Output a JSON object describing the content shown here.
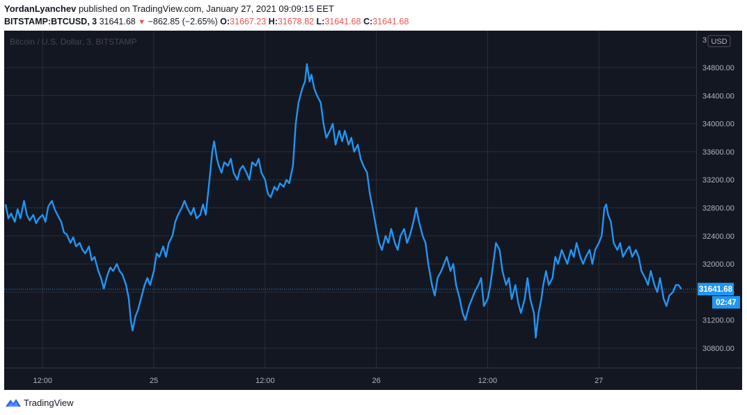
{
  "header": {
    "author": "YordanLyanchev",
    "published_text": "published on TradingView.com, January 27, 2021 09:09:15 EET",
    "symbol": "BITSTAMP:BTCUSD, 3",
    "last": "31641.68",
    "change": "−862.85 (−2.65%)",
    "o_label": "O:",
    "o": "31667.23",
    "h_label": "H:",
    "h": "31678.82",
    "l_label": "L:",
    "l": "31641.68",
    "c_label": "C:",
    "c": "31641.68"
  },
  "chart_data": {
    "type": "line",
    "watermark": "Bitcoin / U.S. Dollar, 3, BITSTAMP",
    "currency_label": "USD",
    "ylim": [
      30500,
      35400
    ],
    "yticks": [
      30800,
      31200,
      31600,
      32000,
      32400,
      32800,
      33200,
      33600,
      34000,
      34400,
      34800
    ],
    "ytick_labels": [
      "30800.00",
      "31200.00",
      "31600.00",
      "32000.00",
      "32400.00",
      "32800.00",
      "33200.00",
      "33600.00",
      "34000.00",
      "34400.00",
      "34800.00"
    ],
    "ytick_top_partial": "3",
    "xticks": [
      {
        "t": 4,
        "label": "12:00"
      },
      {
        "t": 16,
        "label": "25"
      },
      {
        "t": 28,
        "label": "12:00"
      },
      {
        "t": 40,
        "label": "26"
      },
      {
        "t": 52,
        "label": "12:00"
      },
      {
        "t": 64,
        "label": "27"
      }
    ],
    "xlim": [
      0,
      74.5
    ],
    "last_price": 31641.68,
    "last_price_label": "31641.68",
    "countdown": "02:47",
    "series": [
      {
        "color": "#2196f3",
        "points": [
          [
            0.0,
            32850
          ],
          [
            0.3,
            32650
          ],
          [
            0.6,
            32720
          ],
          [
            1.0,
            32600
          ],
          [
            1.3,
            32780
          ],
          [
            1.6,
            32650
          ],
          [
            2.0,
            32900
          ],
          [
            2.3,
            32700
          ],
          [
            2.6,
            32620
          ],
          [
            3.0,
            32700
          ],
          [
            3.3,
            32580
          ],
          [
            3.6,
            32650
          ],
          [
            4.0,
            32700
          ],
          [
            4.3,
            32600
          ],
          [
            4.6,
            32820
          ],
          [
            5.0,
            32900
          ],
          [
            5.3,
            32780
          ],
          [
            5.6,
            32700
          ],
          [
            6.0,
            32600
          ],
          [
            6.3,
            32450
          ],
          [
            6.6,
            32420
          ],
          [
            7.0,
            32300
          ],
          [
            7.3,
            32380
          ],
          [
            7.6,
            32250
          ],
          [
            8.0,
            32300
          ],
          [
            8.3,
            32200
          ],
          [
            8.6,
            32150
          ],
          [
            9.0,
            32250
          ],
          [
            9.3,
            32050
          ],
          [
            9.6,
            32100
          ],
          [
            10.0,
            31900
          ],
          [
            10.3,
            31800
          ],
          [
            10.6,
            31650
          ],
          [
            11.0,
            31850
          ],
          [
            11.3,
            31950
          ],
          [
            11.6,
            31900
          ],
          [
            12.0,
            32000
          ],
          [
            12.3,
            31900
          ],
          [
            12.6,
            31850
          ],
          [
            13.0,
            31700
          ],
          [
            13.3,
            31500
          ],
          [
            13.5,
            31200
          ],
          [
            13.7,
            31050
          ],
          [
            14.0,
            31250
          ],
          [
            14.3,
            31350
          ],
          [
            14.6,
            31500
          ],
          [
            15.0,
            31700
          ],
          [
            15.3,
            31800
          ],
          [
            15.6,
            31700
          ],
          [
            16.0,
            31900
          ],
          [
            16.3,
            32150
          ],
          [
            16.6,
            32100
          ],
          [
            17.0,
            32250
          ],
          [
            17.3,
            32100
          ],
          [
            17.6,
            32300
          ],
          [
            18.0,
            32400
          ],
          [
            18.3,
            32600
          ],
          [
            18.6,
            32700
          ],
          [
            19.0,
            32800
          ],
          [
            19.3,
            32900
          ],
          [
            19.6,
            32800
          ],
          [
            20.0,
            32700
          ],
          [
            20.3,
            32800
          ],
          [
            20.6,
            32650
          ],
          [
            21.0,
            32700
          ],
          [
            21.3,
            32850
          ],
          [
            21.6,
            32700
          ],
          [
            22.0,
            33200
          ],
          [
            22.3,
            33600
          ],
          [
            22.5,
            33750
          ],
          [
            22.8,
            33500
          ],
          [
            23.0,
            33400
          ],
          [
            23.3,
            33300
          ],
          [
            23.6,
            33450
          ],
          [
            24.0,
            33400
          ],
          [
            24.3,
            33500
          ],
          [
            24.6,
            33300
          ],
          [
            25.0,
            33200
          ],
          [
            25.3,
            33350
          ],
          [
            25.6,
            33400
          ],
          [
            26.0,
            33300
          ],
          [
            26.3,
            33200
          ],
          [
            26.6,
            33450
          ],
          [
            27.0,
            33400
          ],
          [
            27.3,
            33500
          ],
          [
            27.6,
            33300
          ],
          [
            28.0,
            33200
          ],
          [
            28.3,
            33000
          ],
          [
            28.6,
            32950
          ],
          [
            29.0,
            33100
          ],
          [
            29.3,
            33050
          ],
          [
            29.6,
            33150
          ],
          [
            30.0,
            33100
          ],
          [
            30.3,
            33200
          ],
          [
            30.6,
            33150
          ],
          [
            31.0,
            33400
          ],
          [
            31.3,
            34000
          ],
          [
            31.6,
            34300
          ],
          [
            32.0,
            34500
          ],
          [
            32.3,
            34600
          ],
          [
            32.5,
            34850
          ],
          [
            32.8,
            34600
          ],
          [
            33.0,
            34700
          ],
          [
            33.3,
            34500
          ],
          [
            33.6,
            34400
          ],
          [
            34.0,
            34300
          ],
          [
            34.3,
            34000
          ],
          [
            34.6,
            33800
          ],
          [
            35.0,
            33900
          ],
          [
            35.3,
            34000
          ],
          [
            35.6,
            33700
          ],
          [
            36.0,
            33900
          ],
          [
            36.3,
            33750
          ],
          [
            36.6,
            33900
          ],
          [
            37.0,
            33700
          ],
          [
            37.3,
            33800
          ],
          [
            37.6,
            33600
          ],
          [
            38.0,
            33700
          ],
          [
            38.3,
            33500
          ],
          [
            38.6,
            33400
          ],
          [
            39.0,
            33300
          ],
          [
            39.3,
            33000
          ],
          [
            39.6,
            32800
          ],
          [
            40.0,
            32500
          ],
          [
            40.3,
            32300
          ],
          [
            40.6,
            32200
          ],
          [
            41.0,
            32400
          ],
          [
            41.3,
            32300
          ],
          [
            41.6,
            32500
          ],
          [
            42.0,
            32300
          ],
          [
            42.3,
            32200
          ],
          [
            42.6,
            32400
          ],
          [
            43.0,
            32500
          ],
          [
            43.3,
            32300
          ],
          [
            43.6,
            32400
          ],
          [
            44.0,
            32600
          ],
          [
            44.3,
            32800
          ],
          [
            44.6,
            32600
          ],
          [
            45.0,
            32400
          ],
          [
            45.3,
            32300
          ],
          [
            45.6,
            32000
          ],
          [
            46.0,
            31700
          ],
          [
            46.3,
            31550
          ],
          [
            46.6,
            31800
          ],
          [
            47.0,
            31900
          ],
          [
            47.3,
            32000
          ],
          [
            47.6,
            32100
          ],
          [
            48.0,
            31900
          ],
          [
            48.3,
            32000
          ],
          [
            48.6,
            31700
          ],
          [
            49.0,
            31500
          ],
          [
            49.3,
            31300
          ],
          [
            49.6,
            31200
          ],
          [
            50.0,
            31400
          ],
          [
            50.3,
            31500
          ],
          [
            50.6,
            31600
          ],
          [
            51.0,
            31700
          ],
          [
            51.3,
            31800
          ],
          [
            51.6,
            31400
          ],
          [
            52.0,
            31500
          ],
          [
            52.3,
            31700
          ],
          [
            52.6,
            32000
          ],
          [
            52.9,
            32300
          ],
          [
            53.3,
            32200
          ],
          [
            53.6,
            31900
          ],
          [
            54.0,
            31700
          ],
          [
            54.3,
            31800
          ],
          [
            54.6,
            31500
          ],
          [
            55.0,
            31700
          ],
          [
            55.3,
            31450
          ],
          [
            55.6,
            31300
          ],
          [
            56.0,
            31500
          ],
          [
            56.3,
            31800
          ],
          [
            56.6,
            31500
          ],
          [
            57.0,
            31300
          ],
          [
            57.2,
            30950
          ],
          [
            57.5,
            31300
          ],
          [
            57.8,
            31500
          ],
          [
            58.0,
            31700
          ],
          [
            58.3,
            31900
          ],
          [
            58.6,
            31700
          ],
          [
            59.0,
            31800
          ],
          [
            59.3,
            32100
          ],
          [
            59.6,
            32000
          ],
          [
            60.0,
            32200
          ],
          [
            60.3,
            32100
          ],
          [
            60.6,
            32000
          ],
          [
            61.0,
            32200
          ],
          [
            61.3,
            32100
          ],
          [
            61.6,
            32300
          ],
          [
            62.0,
            32100
          ],
          [
            62.3,
            32000
          ],
          [
            62.6,
            32100
          ],
          [
            63.0,
            32200
          ],
          [
            63.3,
            32000
          ],
          [
            63.6,
            32200
          ],
          [
            64.0,
            32300
          ],
          [
            64.3,
            32400
          ],
          [
            64.6,
            32800
          ],
          [
            64.8,
            32850
          ],
          [
            65.0,
            32700
          ],
          [
            65.3,
            32600
          ],
          [
            65.6,
            32300
          ],
          [
            66.0,
            32200
          ],
          [
            66.3,
            32300
          ],
          [
            66.6,
            32100
          ],
          [
            67.0,
            32200
          ],
          [
            67.3,
            32250
          ],
          [
            67.6,
            32100
          ],
          [
            68.0,
            32200
          ],
          [
            68.3,
            32100
          ],
          [
            68.6,
            31900
          ],
          [
            69.0,
            31800
          ],
          [
            69.3,
            31700
          ],
          [
            69.6,
            31900
          ],
          [
            70.0,
            31700
          ],
          [
            70.3,
            31600
          ],
          [
            70.6,
            31800
          ],
          [
            71.0,
            31500
          ],
          [
            71.3,
            31400
          ],
          [
            71.6,
            31550
          ],
          [
            72.0,
            31600
          ],
          [
            72.3,
            31700
          ],
          [
            72.6,
            31700
          ],
          [
            72.9,
            31641.68
          ]
        ]
      }
    ]
  },
  "footer": {
    "brand": "TradingView"
  }
}
